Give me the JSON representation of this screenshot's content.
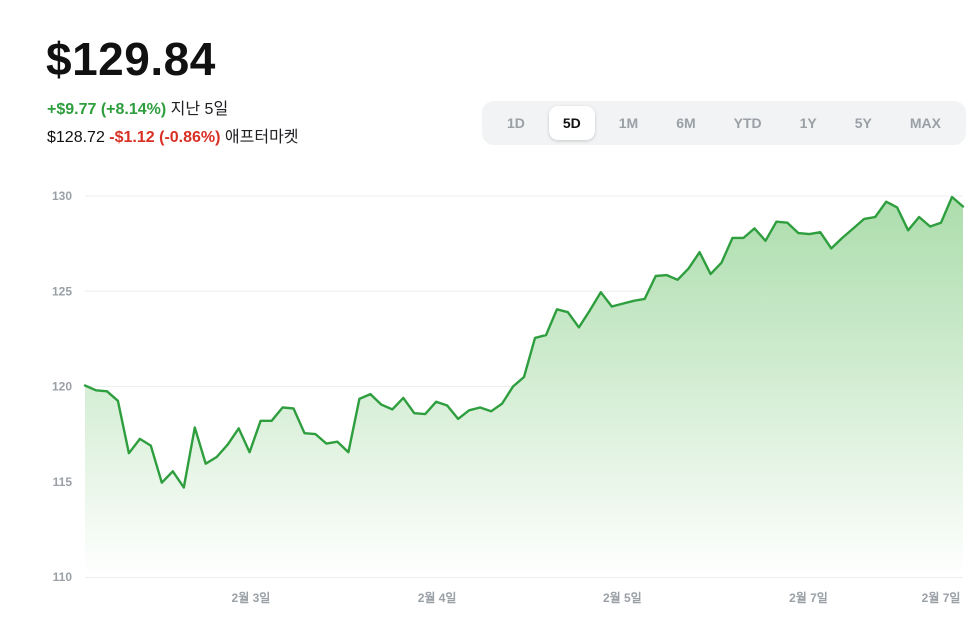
{
  "quote": {
    "price": "$129.84",
    "change": "+$9.77 (+8.14%)",
    "change_period": "지난 5일",
    "after_price": "$128.72",
    "after_change": "-$1.12 (-0.86%)",
    "after_label": "애프터마켓"
  },
  "ranges": {
    "selected": "5D",
    "items": [
      "1D",
      "5D",
      "1M",
      "6M",
      "YTD",
      "1Y",
      "5Y",
      "MAX"
    ]
  },
  "colors": {
    "line": "#2e9e3e",
    "fill_top": "#a8dba8",
    "positive": "#2e9e3e",
    "negative": "#d93025"
  },
  "chart_data": {
    "type": "area",
    "ylim": [
      110,
      130
    ],
    "yticks": [
      110,
      115,
      120,
      125,
      130
    ],
    "xtick_labels": [
      "2월 3일",
      "2월 4일",
      "2월 5일",
      "2월 7일",
      "2월 7일"
    ],
    "grid": true,
    "values": [
      120.05,
      119.8,
      119.75,
      119.25,
      116.5,
      117.25,
      116.9,
      114.95,
      115.55,
      114.7,
      117.85,
      115.95,
      116.3,
      116.95,
      117.8,
      116.55,
      118.2,
      118.2,
      118.9,
      118.85,
      117.55,
      117.5,
      117.0,
      117.1,
      116.55,
      119.35,
      119.6,
      119.05,
      118.8,
      119.4,
      118.6,
      118.55,
      119.2,
      119.0,
      118.3,
      118.75,
      118.9,
      118.7,
      119.1,
      120.0,
      120.5,
      122.55,
      122.7,
      124.05,
      123.9,
      123.1,
      124.0,
      124.95,
      124.2,
      124.35,
      124.5,
      124.6,
      125.8,
      125.85,
      125.6,
      126.2,
      127.05,
      125.9,
      126.5,
      127.8,
      127.8,
      128.3,
      127.65,
      128.65,
      128.6,
      128.05,
      128.0,
      128.1,
      127.25,
      127.8,
      128.3,
      128.8,
      128.9,
      129.7,
      129.4,
      128.2,
      128.9,
      128.4,
      128.6,
      129.95,
      129.45
    ]
  }
}
